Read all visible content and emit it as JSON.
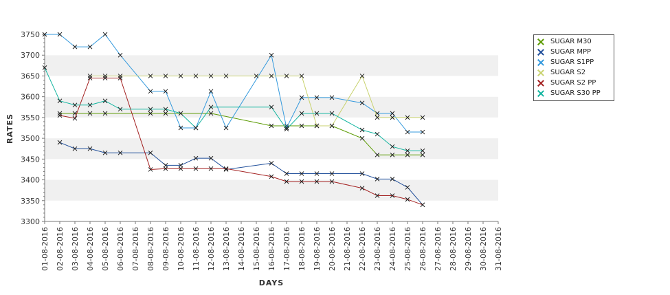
{
  "chart_data": {
    "type": "line",
    "xlabel": "DAYS",
    "ylabel": "RATES",
    "ylim": [
      3300,
      3750
    ],
    "yticks": [
      3300,
      3350,
      3400,
      3450,
      3500,
      3550,
      3600,
      3650,
      3700,
      3750
    ],
    "categories": [
      "01-08-2016",
      "02-08-2016",
      "03-08-2016",
      "04-08-2016",
      "05-08-2016",
      "06-08-2016",
      "07-08-2016",
      "08-08-2016",
      "09-08-2016",
      "10-08-2016",
      "11-08-2016",
      "12-08-2016",
      "13-08-2016",
      "14-08-2016",
      "15-08-2016",
      "16-08-2016",
      "17-08-2016",
      "18-08-2016",
      "19-08-2016",
      "20-08-2016",
      "21-08-2016",
      "22-08-2016",
      "23-08-2016",
      "24-08-2016",
      "25-08-2016",
      "26-08-2016",
      "27-08-2016",
      "28-08-2016",
      "29-08-2016",
      "30-08-2016",
      "31-08-2016"
    ],
    "grid": "horizontal bands",
    "legend_position": "top-right",
    "series": [
      {
        "name": "SUGAR M30",
        "color": "#5a9a00",
        "points": [
          [
            1,
            3560
          ],
          [
            2,
            3560
          ],
          [
            3,
            3560
          ],
          [
            4,
            3560
          ],
          [
            7,
            3560
          ],
          [
            8,
            3560
          ],
          [
            11,
            3560
          ],
          [
            15,
            3530
          ],
          [
            16,
            3530
          ],
          [
            17,
            3530
          ],
          [
            18,
            3530
          ],
          [
            19,
            3530
          ],
          [
            21,
            3500
          ],
          [
            22,
            3460
          ],
          [
            23,
            3460
          ],
          [
            24,
            3460
          ],
          [
            25,
            3460
          ]
        ]
      },
      {
        "name": "SUGAR MPP",
        "color": "#1f4e9a",
        "points": [
          [
            1,
            3490
          ],
          [
            2,
            3475
          ],
          [
            3,
            3475
          ],
          [
            4,
            3465
          ],
          [
            5,
            3465
          ],
          [
            7,
            3465
          ],
          [
            8,
            3435
          ],
          [
            9,
            3435
          ],
          [
            10,
            3452
          ],
          [
            11,
            3452
          ],
          [
            12,
            3425
          ],
          [
            15,
            3440
          ],
          [
            16,
            3415
          ],
          [
            17,
            3415
          ],
          [
            18,
            3415
          ],
          [
            19,
            3415
          ],
          [
            21,
            3415
          ],
          [
            22,
            3402
          ],
          [
            23,
            3402
          ],
          [
            24,
            3382
          ],
          [
            25,
            3340
          ]
        ]
      },
      {
        "name": "SUGAR S1PP",
        "color": "#3399dd",
        "points": [
          [
            0,
            3750
          ],
          [
            1,
            3750
          ],
          [
            2,
            3720
          ],
          [
            3,
            3720
          ],
          [
            4,
            3750
          ],
          [
            5,
            3700
          ],
          [
            7,
            3613
          ],
          [
            8,
            3613
          ],
          [
            9,
            3525
          ],
          [
            10,
            3525
          ],
          [
            11,
            3613
          ],
          [
            12,
            3525
          ],
          [
            15,
            3700
          ],
          [
            16,
            3525
          ],
          [
            17,
            3598
          ],
          [
            18,
            3598
          ],
          [
            19,
            3598
          ],
          [
            21,
            3585
          ],
          [
            22,
            3560
          ],
          [
            23,
            3560
          ],
          [
            24,
            3515
          ],
          [
            25,
            3515
          ]
        ]
      },
      {
        "name": "SUGAR S2",
        "color": "#c8d26e",
        "points": [
          [
            3,
            3650
          ],
          [
            4,
            3650
          ],
          [
            5,
            3650
          ],
          [
            7,
            3650
          ],
          [
            8,
            3650
          ],
          [
            9,
            3650
          ],
          [
            10,
            3650
          ],
          [
            11,
            3650
          ],
          [
            12,
            3650
          ],
          [
            14,
            3650
          ],
          [
            15,
            3650
          ],
          [
            16,
            3650
          ],
          [
            17,
            3650
          ],
          [
            18,
            3530
          ],
          [
            19,
            3530
          ],
          [
            21,
            3650
          ],
          [
            22,
            3550
          ],
          [
            23,
            3550
          ],
          [
            24,
            3550
          ],
          [
            25,
            3550
          ]
        ]
      },
      {
        "name": "SUGAR S2 PP",
        "color": "#a32020",
        "points": [
          [
            1,
            3555
          ],
          [
            2,
            3548
          ],
          [
            3,
            3645
          ],
          [
            4,
            3645
          ],
          [
            5,
            3645
          ],
          [
            7,
            3425
          ],
          [
            8,
            3427
          ],
          [
            9,
            3427
          ],
          [
            10,
            3427
          ],
          [
            11,
            3427
          ],
          [
            12,
            3427
          ],
          [
            15,
            3408
          ],
          [
            16,
            3396
          ],
          [
            17,
            3396
          ],
          [
            18,
            3396
          ],
          [
            19,
            3396
          ],
          [
            21,
            3380
          ],
          [
            22,
            3362
          ],
          [
            23,
            3362
          ],
          [
            24,
            3353
          ],
          [
            25,
            3340
          ]
        ]
      },
      {
        "name": "SUGAR S30 PP",
        "color": "#13b5a0",
        "points": [
          [
            0,
            3670
          ],
          [
            1,
            3590
          ],
          [
            2,
            3580
          ],
          [
            3,
            3580
          ],
          [
            4,
            3590
          ],
          [
            5,
            3570
          ],
          [
            7,
            3570
          ],
          [
            8,
            3570
          ],
          [
            9,
            3560
          ],
          [
            10,
            3525
          ],
          [
            11,
            3575
          ],
          [
            15,
            3575
          ],
          [
            16,
            3522
          ],
          [
            17,
            3560
          ],
          [
            18,
            3560
          ],
          [
            19,
            3560
          ],
          [
            21,
            3520
          ],
          [
            22,
            3510
          ],
          [
            23,
            3480
          ],
          [
            24,
            3470
          ],
          [
            25,
            3470
          ]
        ]
      }
    ]
  }
}
